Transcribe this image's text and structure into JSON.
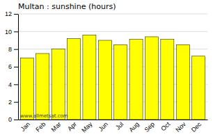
{
  "chart_data": {
    "type": "bar",
    "title": "Multan : sunshine (hours)",
    "categories": [
      "Jan",
      "Feb",
      "Mar",
      "Apr",
      "May",
      "Jun",
      "Jul",
      "Aug",
      "Sep",
      "Oct",
      "Nov",
      "Dec"
    ],
    "values": [
      7.0,
      7.5,
      8.0,
      9.2,
      9.6,
      9.0,
      8.5,
      9.1,
      9.4,
      9.1,
      8.5,
      7.2
    ],
    "color": "#FFFF00",
    "ylim": [
      0,
      12
    ],
    "yticks": [
      0,
      2,
      4,
      6,
      8,
      10,
      12
    ],
    "grid": true,
    "annotations": [
      "www.allmetsat.com"
    ]
  }
}
